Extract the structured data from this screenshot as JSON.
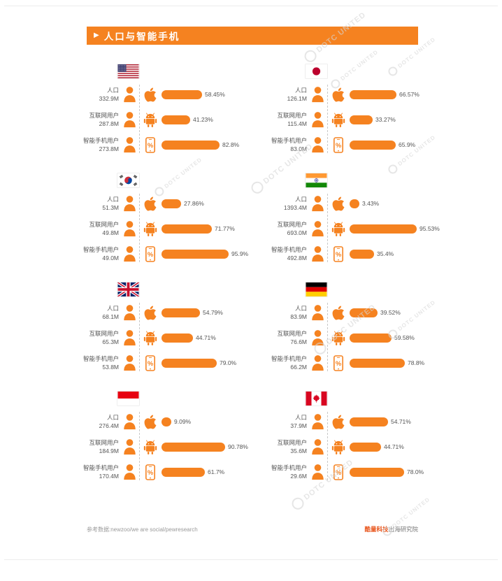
{
  "header": {
    "marker": "▶",
    "title": "人口与智能手机"
  },
  "watermark": {
    "text": "DOTC UNITED"
  },
  "glyphs": {
    "percent": "%"
  },
  "colors": {
    "accent": "#F58220",
    "footer_highlight": "#E8541A",
    "watermark": "#D6D6D6"
  },
  "footer": {
    "source": "参考数据:newzoo/we are social/pewresearch",
    "org_highlight": "酷量科技",
    "org_suffix": "出海研究院"
  },
  "chart_data": {
    "type": "bar",
    "title": "人口与智能手机",
    "value_unit": "percent",
    "xlim": [
      0,
      100
    ],
    "row_metric_icons": [
      "apple-icon",
      "android-icon",
      "smartphone-percent-icon"
    ],
    "row_labels": [
      "人口",
      "互联网用户",
      "智能手机用户"
    ],
    "countries": [
      {
        "name": "United States",
        "flag": "united-states",
        "rows": [
          {
            "label": "人口",
            "value": "332.9M",
            "icon": "apple",
            "pct": 58.45,
            "pct_label": "58.45%"
          },
          {
            "label": "互联网用户",
            "value": "287.8M",
            "icon": "android",
            "pct": 41.23,
            "pct_label": "41.23%"
          },
          {
            "label": "智能手机用户",
            "value": "273.8M",
            "icon": "phone",
            "pct": 82.8,
            "pct_label": "82.8%"
          }
        ]
      },
      {
        "name": "Japan",
        "flag": "japan",
        "rows": [
          {
            "label": "人口",
            "value": "126.1M",
            "icon": "apple",
            "pct": 66.57,
            "pct_label": "66.57%"
          },
          {
            "label": "互联网用户",
            "value": "115.4M",
            "icon": "android",
            "pct": 33.27,
            "pct_label": "33.27%"
          },
          {
            "label": "智能手机用户",
            "value": "83.0M",
            "icon": "phone",
            "pct": 65.9,
            "pct_label": "65.9%"
          }
        ]
      },
      {
        "name": "South Korea",
        "flag": "south-korea",
        "rows": [
          {
            "label": "人口",
            "value": "51.3M",
            "icon": "apple",
            "pct": 27.86,
            "pct_label": "27.86%"
          },
          {
            "label": "互联网用户",
            "value": "49.8M",
            "icon": "android",
            "pct": 71.77,
            "pct_label": "71.77%"
          },
          {
            "label": "智能手机用户",
            "value": "49.0M",
            "icon": "phone",
            "pct": 95.9,
            "pct_label": "95.9%"
          }
        ]
      },
      {
        "name": "India",
        "flag": "india",
        "rows": [
          {
            "label": "人口",
            "value": "1393.4M",
            "icon": "apple",
            "pct": 3.43,
            "pct_label": "3.43%"
          },
          {
            "label": "互联网用户",
            "value": "693.0M",
            "icon": "android",
            "pct": 95.53,
            "pct_label": "95.53%"
          },
          {
            "label": "智能手机用户",
            "value": "492.8M",
            "icon": "phone",
            "pct": 35.4,
            "pct_label": "35.4%"
          }
        ]
      },
      {
        "name": "United Kingdom",
        "flag": "united-kingdom",
        "rows": [
          {
            "label": "人口",
            "value": "68.1M",
            "icon": "apple",
            "pct": 54.79,
            "pct_label": "54.79%"
          },
          {
            "label": "互联网用户",
            "value": "65.3M",
            "icon": "android",
            "pct": 44.71,
            "pct_label": "44.71%"
          },
          {
            "label": "智能手机用户",
            "value": "53.8M",
            "icon": "phone",
            "pct": 79.0,
            "pct_label": "79.0%"
          }
        ]
      },
      {
        "name": "Germany",
        "flag": "germany",
        "rows": [
          {
            "label": "人口",
            "value": "83.9M",
            "icon": "apple",
            "pct": 39.52,
            "pct_label": "39.52%"
          },
          {
            "label": "互联网用户",
            "value": "76.6M",
            "icon": "android",
            "pct": 59.58,
            "pct_label": "59.58%"
          },
          {
            "label": "智能手机用户",
            "value": "66.2M",
            "icon": "phone",
            "pct": 78.8,
            "pct_label": "78.8%"
          }
        ]
      },
      {
        "name": "Indonesia",
        "flag": "indonesia",
        "rows": [
          {
            "label": "人口",
            "value": "276.4M",
            "icon": "apple",
            "pct": 9.09,
            "pct_label": "9.09%"
          },
          {
            "label": "互联网用户",
            "value": "184.9M",
            "icon": "android",
            "pct": 90.78,
            "pct_label": "90.78%"
          },
          {
            "label": "智能手机用户",
            "value": "170.4M",
            "icon": "phone",
            "pct": 61.7,
            "pct_label": "61.7%"
          }
        ]
      },
      {
        "name": "Canada",
        "flag": "canada",
        "rows": [
          {
            "label": "人口",
            "value": "37.9M",
            "icon": "apple",
            "pct": 54.71,
            "pct_label": "54.71%"
          },
          {
            "label": "互联网用户",
            "value": "35.6M",
            "icon": "android",
            "pct": 44.71,
            "pct_label": "44.71%"
          },
          {
            "label": "智能手机用户",
            "value": "29.6M",
            "icon": "phone",
            "pct": 78.0,
            "pct_label": "78.0%"
          }
        ]
      }
    ]
  }
}
